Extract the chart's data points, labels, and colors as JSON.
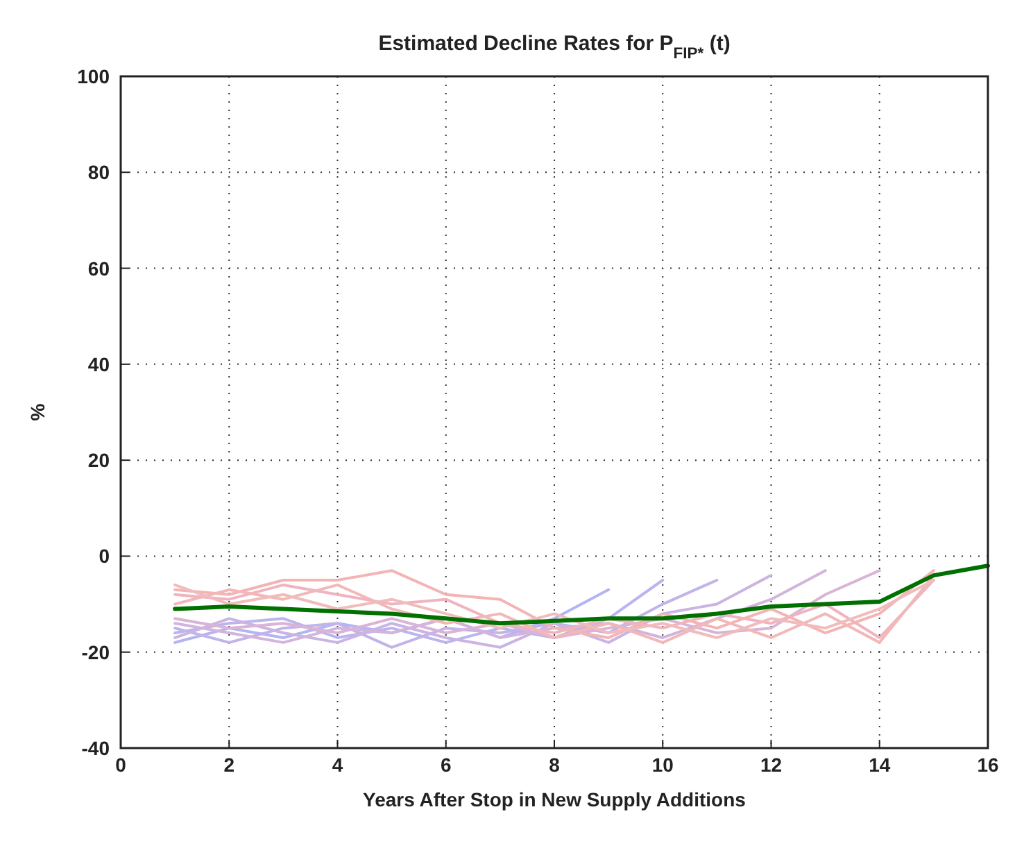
{
  "chart_data": {
    "type": "line",
    "title": "Estimated Decline Rates for P$_{FIP*}$ (t)",
    "xlabel": "Years After Stop in New Supply Additions",
    "ylabel": "%",
    "xlim": [
      0,
      16
    ],
    "xticks": [
      0,
      2,
      4,
      6,
      8,
      10,
      12,
      14,
      16
    ],
    "ylim": [
      -40,
      100
    ],
    "yticks": [
      -40,
      -20,
      0,
      20,
      40,
      60,
      80,
      100
    ],
    "grid": true,
    "marker": "none",
    "line_style": "solid",
    "series": [
      {
        "color": "#b4b4f4",
        "x": [
          1,
          2,
          3,
          4,
          5,
          6,
          7,
          8,
          9
        ],
        "values": [
          -18,
          -15,
          -17,
          -14,
          -16,
          -13,
          -17,
          -13,
          -7
        ]
      },
      {
        "color": "#bab4ef",
        "x": [
          1,
          2,
          3,
          4,
          5,
          6,
          7,
          8,
          9,
          10
        ],
        "values": [
          -16,
          -14,
          -13,
          -17,
          -15,
          -18,
          -15,
          -17,
          -13,
          -5
        ]
      },
      {
        "color": "#c2b4e9",
        "x": [
          1,
          2,
          3,
          4,
          5,
          6,
          7,
          8,
          9,
          10,
          11
        ],
        "values": [
          -15,
          -18,
          -15,
          -14,
          -19,
          -15,
          -16,
          -14,
          -16,
          -10,
          -5
        ]
      },
      {
        "color": "#cab4e3",
        "x": [
          1,
          2,
          3,
          4,
          5,
          6,
          7,
          8,
          9,
          10,
          11,
          12
        ],
        "values": [
          -17,
          -13,
          -16,
          -18,
          -14,
          -17,
          -19,
          -14,
          -18,
          -12,
          -10,
          -4
        ]
      },
      {
        "color": "#d2b4dd",
        "x": [
          1,
          2,
          3,
          4,
          5,
          6,
          7,
          8,
          9,
          10,
          11,
          12,
          13
        ],
        "values": [
          -14,
          -16,
          -18,
          -15,
          -16,
          -13,
          -17,
          -15,
          -14,
          -17,
          -13,
          -9,
          -3
        ]
      },
      {
        "color": "#dab4d7",
        "x": [
          1,
          2,
          3,
          4,
          5,
          6,
          7,
          8,
          9,
          10,
          11,
          12,
          13,
          14
        ],
        "values": [
          -13,
          -15,
          -14,
          -16,
          -13,
          -16,
          -14,
          -17,
          -15,
          -13,
          -16,
          -15,
          -8,
          -3
        ]
      },
      {
        "color": "#f0b4c0",
        "x": [
          1,
          2,
          3,
          4,
          5,
          6,
          7,
          8,
          9,
          10,
          11,
          12,
          13,
          14,
          15
        ],
        "values": [
          -8,
          -9,
          -6,
          -8,
          -10,
          -9,
          -14,
          -16,
          -13,
          -15,
          -12,
          -14,
          -10,
          -17,
          -5
        ]
      },
      {
        "color": "#f4b4b4",
        "x": [
          1,
          2,
          3,
          4,
          5,
          6,
          7,
          8,
          9,
          10,
          11,
          12,
          13,
          14,
          15
        ],
        "values": [
          -7,
          -8,
          -5,
          -5,
          -3,
          -8,
          -9,
          -15,
          -17,
          -12,
          -15,
          -11,
          -16,
          -12,
          -3
        ]
      },
      {
        "color": "#f2b8b8",
        "x": [
          1,
          2,
          3,
          4,
          5,
          6,
          7,
          8,
          9,
          10,
          11,
          12,
          13,
          14,
          15
        ],
        "values": [
          -10,
          -7,
          -9,
          -6,
          -11,
          -14,
          -12,
          -17,
          -14,
          -18,
          -13,
          -17,
          -12,
          -18,
          -4
        ]
      },
      {
        "color": "#f0bcbc",
        "x": [
          1,
          2,
          3,
          4,
          5,
          6,
          7,
          8,
          9,
          10,
          11,
          12,
          13,
          14,
          15
        ],
        "values": [
          -6,
          -10,
          -8,
          -11,
          -9,
          -12,
          -15,
          -12,
          -16,
          -14,
          -17,
          -13,
          -15,
          -11,
          -5
        ]
      },
      {
        "color": "#007000",
        "x": [
          1,
          2,
          3,
          4,
          5,
          6,
          7,
          8,
          9,
          10,
          11,
          12,
          13,
          14,
          15,
          16
        ],
        "values": [
          -11,
          -10.5,
          -11,
          -11.5,
          -12,
          -13,
          -14,
          -13.5,
          -13,
          -13,
          -12,
          -10.5,
          -10,
          -9.5,
          -4,
          -2
        ]
      }
    ]
  }
}
